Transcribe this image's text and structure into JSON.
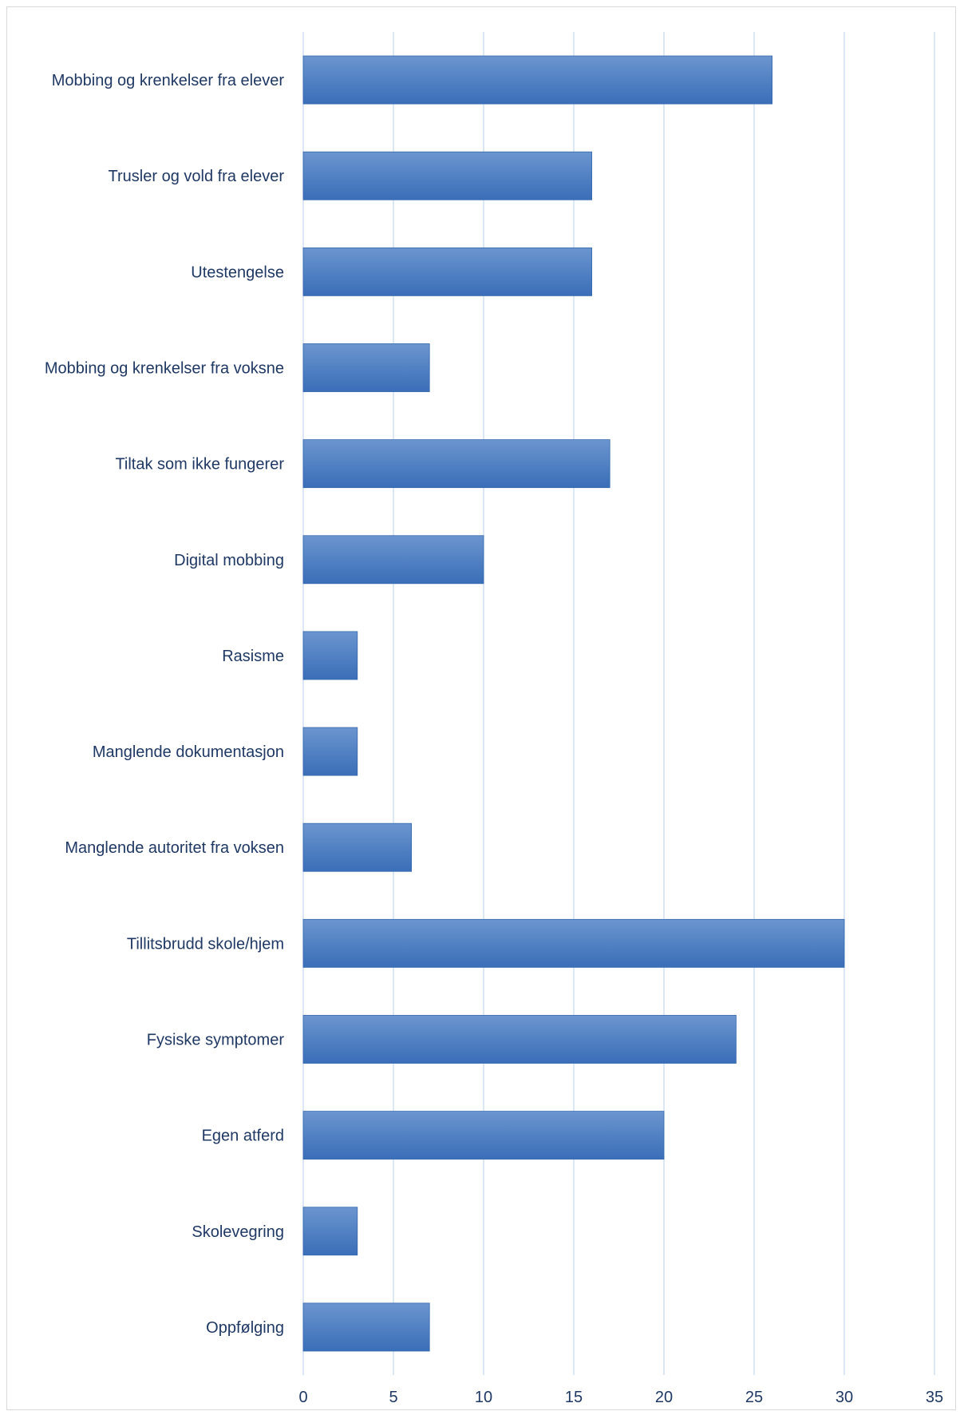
{
  "chart_data": {
    "type": "bar",
    "orientation": "horizontal",
    "title": "",
    "xlabel": "",
    "ylabel": "",
    "categories": [
      "Mobbing og krenkelser fra elever",
      "Trusler og vold fra elever",
      "Utestengelse",
      "Mobbing og krenkelser fra voksne",
      "Tiltak som ikke fungerer",
      "Digital mobbing",
      "Rasisme",
      "Manglende dokumentasjon",
      "Manglende autoritet fra voksen",
      "Tillitsbrudd skole/hjem",
      "Fysiske symptomer",
      "Egen atferd",
      "Skolevegring",
      "Oppfølging"
    ],
    "values": [
      26,
      16,
      16,
      7,
      17,
      10,
      3,
      3,
      6,
      30,
      24,
      20,
      3,
      7
    ],
    "xlim": [
      0,
      35
    ],
    "xticks": [
      "0",
      "5",
      "10",
      "15",
      "20",
      "25",
      "30",
      "35"
    ],
    "grid": true,
    "legend": "none",
    "colors": {
      "bar_top": "#6b95cf",
      "bar_bottom": "#3a6eb8",
      "bar_edge": "#3567ad",
      "gridline": "#c8dcee",
      "label_text": "#1f3864"
    }
  }
}
